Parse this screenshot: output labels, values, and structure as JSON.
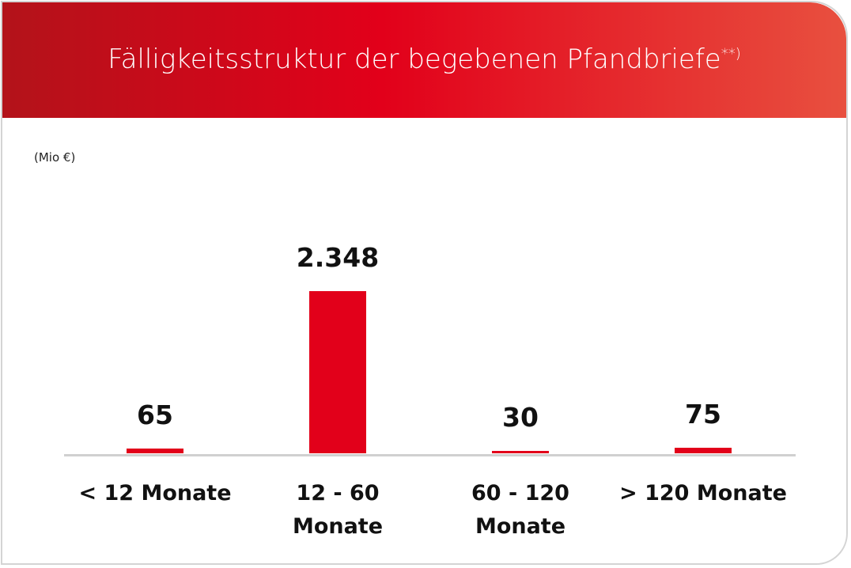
{
  "chart_data": {
    "type": "bar",
    "title": "Fälligkeitsstruktur der begebenen Pfandbriefe",
    "title_note": "**)",
    "unit_label": "(Mio €)",
    "categories": [
      "< 12 Monate",
      "12 - 60 Monate",
      "60 - 120 Monate",
      "> 120 Monate"
    ],
    "values": [
      65,
      2348,
      30,
      75
    ],
    "value_labels": [
      "65",
      "2.348",
      "30",
      "75"
    ],
    "color": "#e2001a"
  }
}
